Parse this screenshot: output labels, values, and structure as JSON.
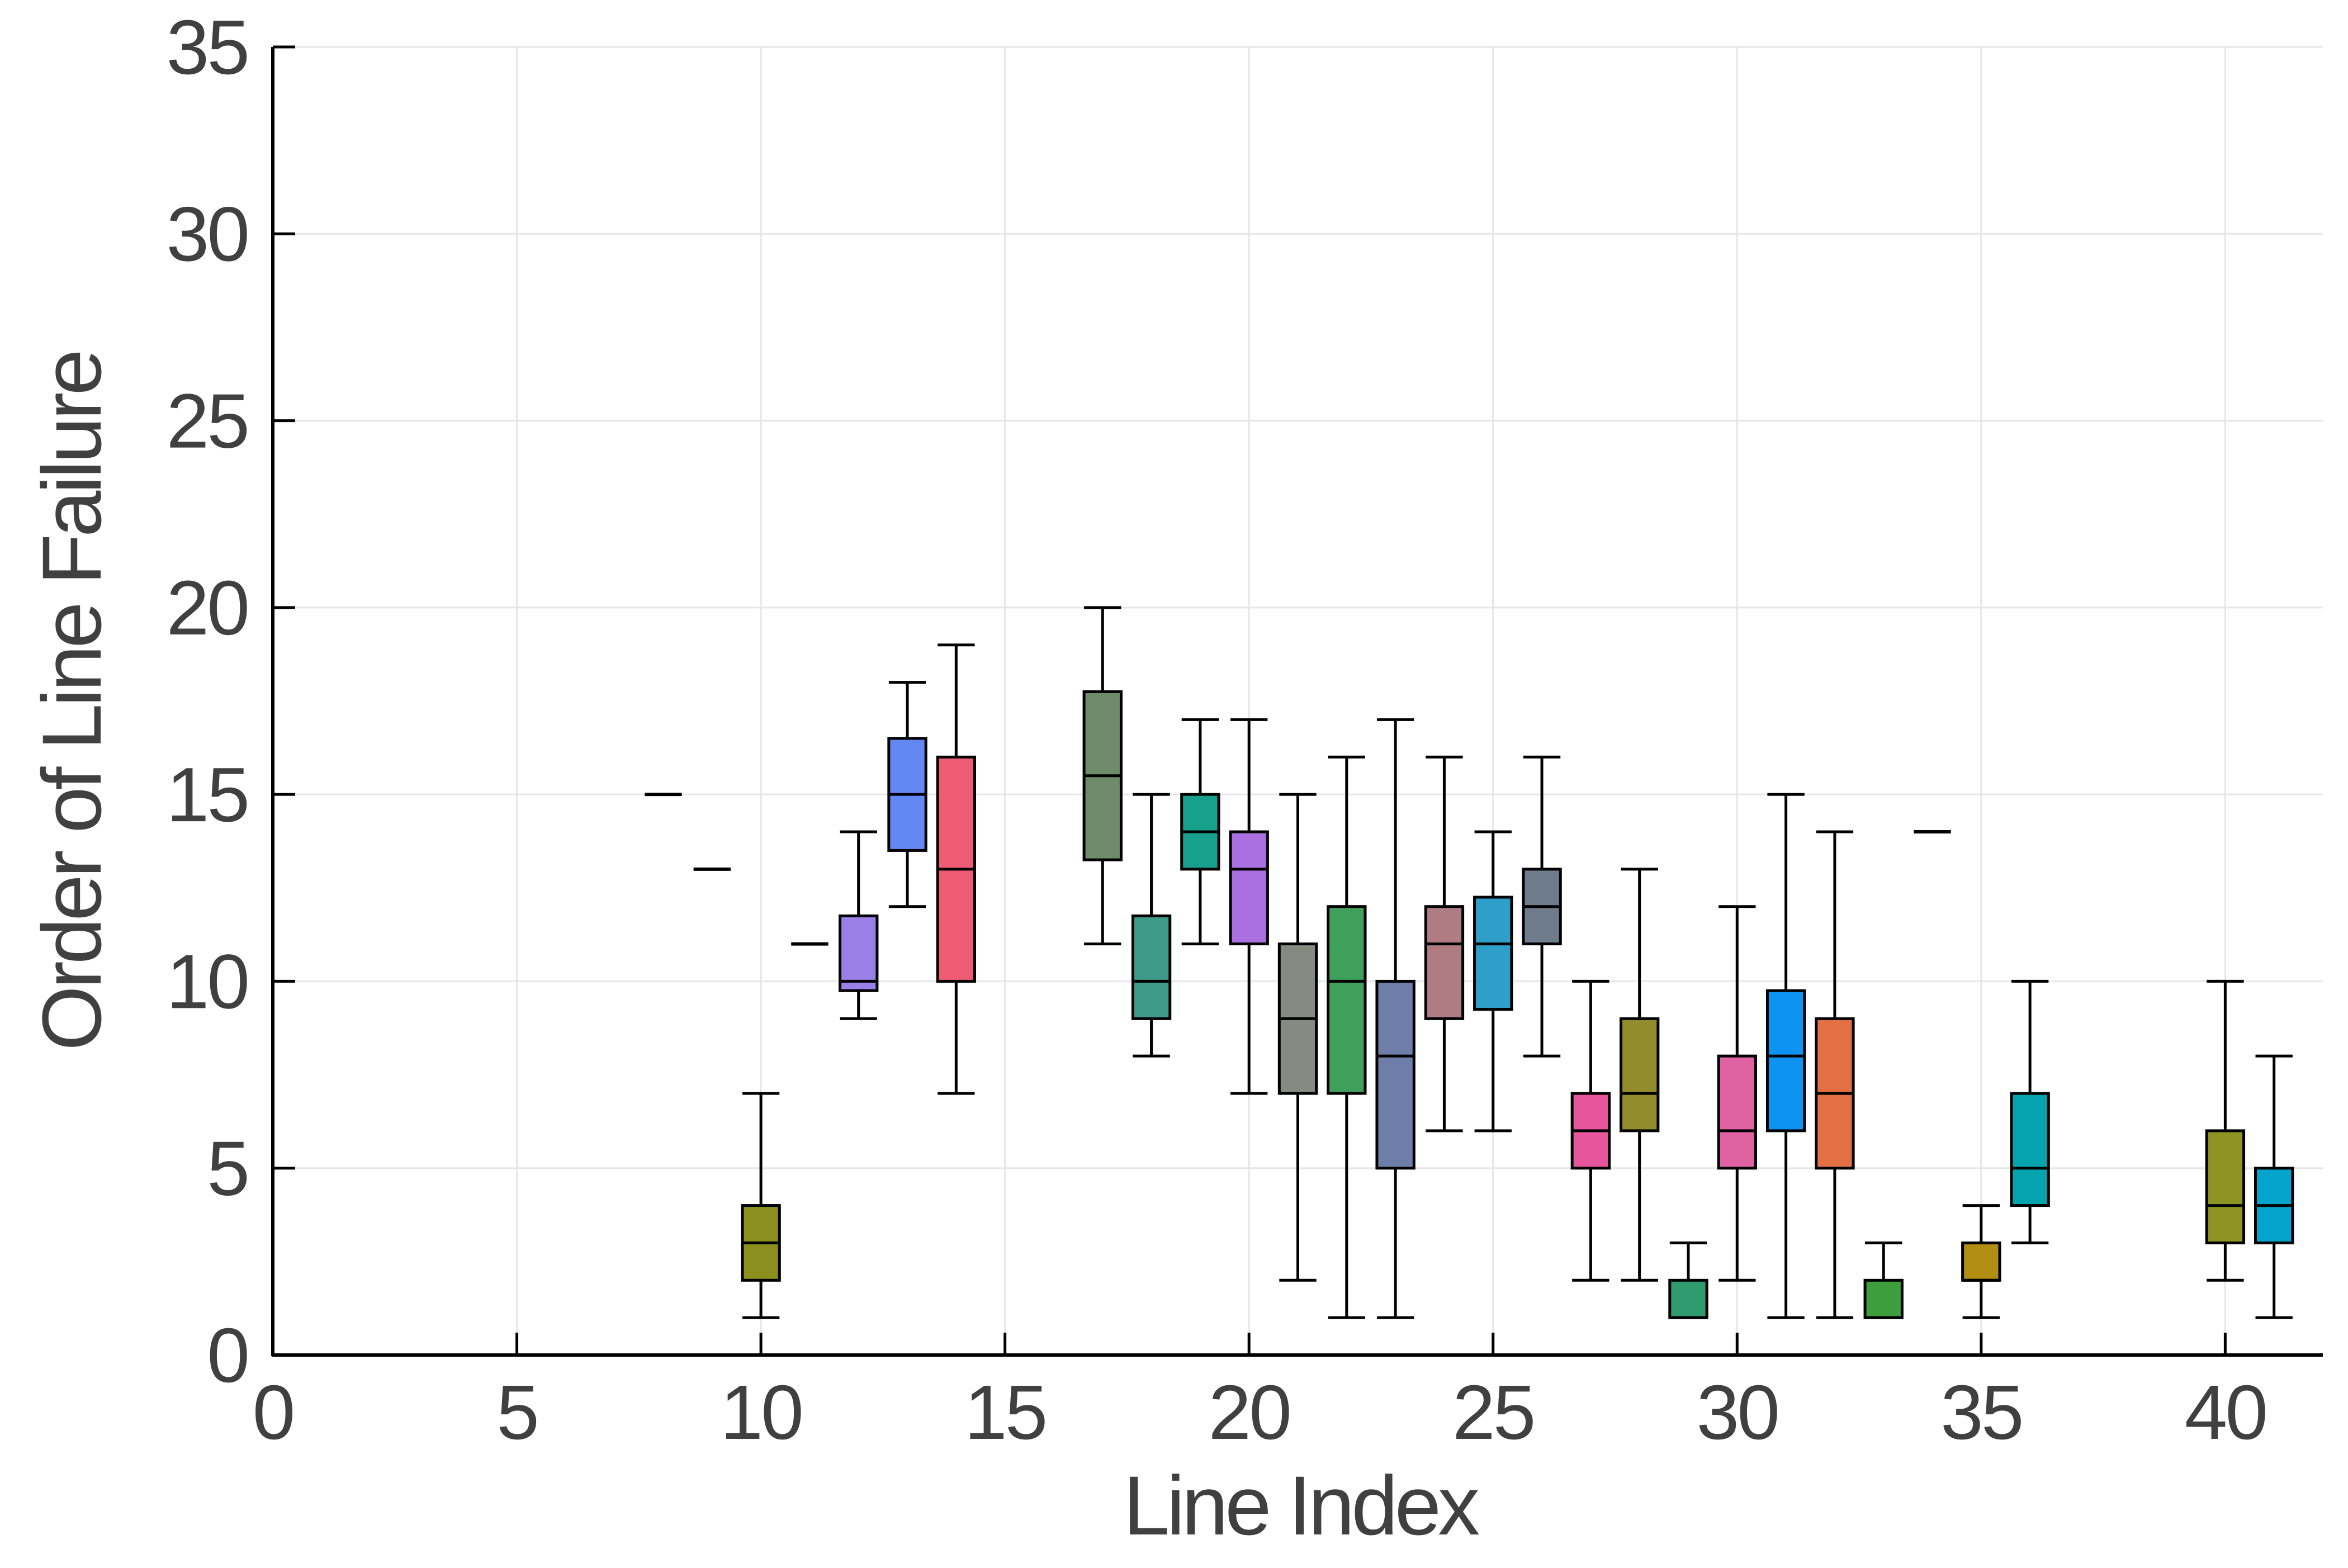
{
  "chart_data": {
    "type": "box",
    "title": "",
    "xlabel": "Line Index",
    "ylabel": "Order of Line Failure",
    "xlim": [
      0,
      42
    ],
    "ylim": [
      0,
      35
    ],
    "xticks": [
      0,
      5,
      10,
      15,
      20,
      25,
      30,
      35,
      40
    ],
    "yticks": [
      0,
      5,
      10,
      15,
      20,
      25,
      30,
      35
    ],
    "grid": true,
    "legend": "none",
    "boxes": [
      {
        "x": 8,
        "min": 15,
        "q1": 15,
        "median": 15,
        "q3": 15,
        "max": 15,
        "color": "#000000"
      },
      {
        "x": 9,
        "min": 13,
        "q1": 13,
        "median": 13,
        "q3": 13,
        "max": 13,
        "color": "#000000"
      },
      {
        "x": 10,
        "min": 1,
        "q1": 2,
        "median": 3,
        "q3": 4,
        "max": 7,
        "color": "#8a8f1e"
      },
      {
        "x": 11,
        "min": 11,
        "q1": 11,
        "median": 11,
        "q3": 11,
        "max": 11,
        "color": "#000000"
      },
      {
        "x": 12,
        "min": 9,
        "q1": 9.75,
        "median": 10,
        "q3": 11.75,
        "max": 14,
        "color": "#9a7fe6"
      },
      {
        "x": 13,
        "min": 12,
        "q1": 13.5,
        "median": 15,
        "q3": 16.5,
        "max": 18,
        "color": "#6388f2"
      },
      {
        "x": 14,
        "min": 7,
        "q1": 10,
        "median": 13,
        "q3": 16,
        "max": 19,
        "color": "#ee5c73"
      },
      {
        "x": 17,
        "min": 11,
        "q1": 13.25,
        "median": 15.5,
        "q3": 17.75,
        "max": 20,
        "color": "#6e8b6a"
      },
      {
        "x": 18,
        "min": 8,
        "q1": 9,
        "median": 10,
        "q3": 11.75,
        "max": 15,
        "color": "#3f9a8a"
      },
      {
        "x": 19,
        "min": 11,
        "q1": 13,
        "median": 14,
        "q3": 15,
        "max": 17,
        "color": "#17a08c"
      },
      {
        "x": 20,
        "min": 7,
        "q1": 11,
        "median": 13,
        "q3": 14,
        "max": 17,
        "color": "#aa6fe0"
      },
      {
        "x": 21,
        "min": 2,
        "q1": 7,
        "median": 9,
        "q3": 11,
        "max": 15,
        "color": "#868b82"
      },
      {
        "x": 22,
        "min": 1,
        "q1": 7,
        "median": 10,
        "q3": 12,
        "max": 16,
        "color": "#3ea05a"
      },
      {
        "x": 23,
        "min": 1,
        "q1": 5,
        "median": 8,
        "q3": 10,
        "max": 17,
        "color": "#6f7ea8"
      },
      {
        "x": 24,
        "min": 6,
        "q1": 9,
        "median": 11,
        "q3": 12,
        "max": 16,
        "color": "#b07c84"
      },
      {
        "x": 25,
        "min": 6,
        "q1": 9.25,
        "median": 11,
        "q3": 12.25,
        "max": 14,
        "color": "#2e9fc8"
      },
      {
        "x": 26,
        "min": 8,
        "q1": 11,
        "median": 12,
        "q3": 13,
        "max": 16,
        "color": "#6e7c8c"
      },
      {
        "x": 27,
        "min": 2,
        "q1": 5,
        "median": 6,
        "q3": 7,
        "max": 10,
        "color": "#e6559d"
      },
      {
        "x": 28,
        "min": 2,
        "q1": 6,
        "median": 7,
        "q3": 9,
        "max": 13,
        "color": "#928c2c"
      },
      {
        "x": 29,
        "min": 1,
        "q1": 1,
        "median": 1,
        "q3": 2,
        "max": 3,
        "color": "#2f9a6e"
      },
      {
        "x": 30,
        "min": 2,
        "q1": 5,
        "median": 6,
        "q3": 8,
        "max": 12,
        "color": "#df62a3"
      },
      {
        "x": 31,
        "min": 1,
        "q1": 6,
        "median": 8,
        "q3": 9.75,
        "max": 15,
        "color": "#0e93f2"
      },
      {
        "x": 32,
        "min": 1,
        "q1": 5,
        "median": 7,
        "q3": 9,
        "max": 14,
        "color": "#e36f45"
      },
      {
        "x": 33,
        "min": 1,
        "q1": 1,
        "median": 1,
        "q3": 2,
        "max": 3,
        "color": "#3e9e3e"
      },
      {
        "x": 34,
        "min": 14,
        "q1": 14,
        "median": 14,
        "q3": 14,
        "max": 14,
        "color": "#000000"
      },
      {
        "x": 35,
        "min": 1,
        "q1": 2,
        "median": 2,
        "q3": 3,
        "max": 4,
        "color": "#b28e12"
      },
      {
        "x": 36,
        "min": 3,
        "q1": 4,
        "median": 5,
        "q3": 7,
        "max": 10,
        "color": "#04a3ad"
      },
      {
        "x": 40,
        "min": 2,
        "q1": 3,
        "median": 4,
        "q3": 6,
        "max": 10,
        "color": "#8e9422"
      },
      {
        "x": 41,
        "min": 1,
        "q1": 3,
        "median": 4,
        "q3": 5,
        "max": 8,
        "color": "#04a4cc"
      }
    ]
  },
  "colors": {
    "axis": "#000000",
    "grid": "#e6e6e6",
    "text": "#404040"
  }
}
